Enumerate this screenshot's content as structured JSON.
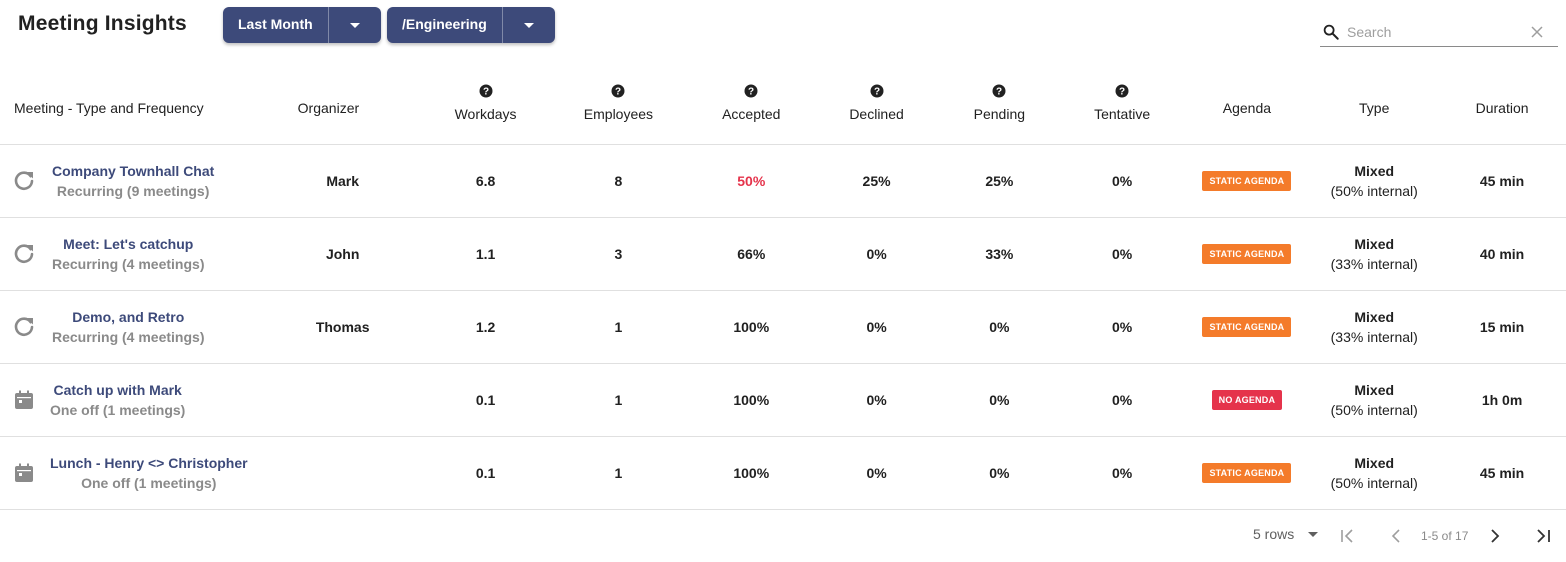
{
  "header": {
    "title": "Meeting Insights",
    "filters": [
      {
        "label": "Last Month",
        "icon": "chevron-down-icon"
      },
      {
        "label": "/Engineering",
        "icon": "chevron-down-icon"
      }
    ],
    "search": {
      "placeholder": "Search",
      "value": "",
      "icon": "search-icon",
      "clear_icon": "close-icon"
    }
  },
  "colors": {
    "accent": "#3d4a7a",
    "static_agenda": "#f47b2a",
    "no_agenda": "#e5334b",
    "red_value": "#e5334b",
    "muted": "#8a8a8a",
    "icon_gray": "#8a8a8a"
  },
  "table": {
    "columns": [
      {
        "label": "Meeting - Type and Frequency",
        "help": false
      },
      {
        "label": "Organizer",
        "help": false
      },
      {
        "label": "Workdays",
        "help": true
      },
      {
        "label": "Employees",
        "help": true
      },
      {
        "label": "Accepted",
        "help": true
      },
      {
        "label": "Declined",
        "help": true
      },
      {
        "label": "Pending",
        "help": true
      },
      {
        "label": "Tentative",
        "help": true
      },
      {
        "label": "Agenda",
        "help": false
      },
      {
        "label": "Type",
        "help": false
      },
      {
        "label": "Duration",
        "help": false
      }
    ],
    "rows": [
      {
        "icon": "recurring-icon",
        "name": "Company Townhall Chat",
        "frequency": "Recurring (9 meetings)",
        "organizer": "Mark",
        "workdays": "6.8",
        "employees": "8",
        "accepted": "50%",
        "accepted_alert": true,
        "declined": "25%",
        "pending": "25%",
        "tentative": "0%",
        "agenda": "STATIC AGENDA",
        "agenda_kind": "static",
        "type": "Mixed",
        "type_detail": "(50% internal)",
        "duration": "45 min"
      },
      {
        "icon": "recurring-icon",
        "name": "Meet: Let's catchup",
        "frequency": "Recurring (4 meetings)",
        "organizer": "John",
        "workdays": "1.1",
        "employees": "3",
        "accepted": "66%",
        "accepted_alert": false,
        "declined": "0%",
        "pending": "33%",
        "tentative": "0%",
        "agenda": "STATIC AGENDA",
        "agenda_kind": "static",
        "type": "Mixed",
        "type_detail": "(33% internal)",
        "duration": "40 min"
      },
      {
        "icon": "recurring-icon",
        "name": "Demo, and Retro",
        "frequency": "Recurring (4 meetings)",
        "organizer": "Thomas",
        "workdays": "1.2",
        "employees": "1",
        "accepted": "100%",
        "accepted_alert": false,
        "declined": "0%",
        "pending": "0%",
        "tentative": "0%",
        "agenda": "STATIC AGENDA",
        "agenda_kind": "static",
        "type": "Mixed",
        "type_detail": "(33% internal)",
        "duration": "15 min"
      },
      {
        "icon": "calendar-icon",
        "name": "Catch up with Mark",
        "frequency": "One off (1 meetings)",
        "organizer": "",
        "workdays": "0.1",
        "employees": "1",
        "accepted": "100%",
        "accepted_alert": false,
        "declined": "0%",
        "pending": "0%",
        "tentative": "0%",
        "agenda": "NO AGENDA",
        "agenda_kind": "none",
        "type": "Mixed",
        "type_detail": "(50% internal)",
        "duration": "1h 0m"
      },
      {
        "icon": "calendar-icon",
        "name": "Lunch - Henry <> Christopher",
        "frequency": "One off (1 meetings)",
        "organizer": "",
        "workdays": "0.1",
        "employees": "1",
        "accepted": "100%",
        "accepted_alert": false,
        "declined": "0%",
        "pending": "0%",
        "tentative": "0%",
        "agenda": "STATIC AGENDA",
        "agenda_kind": "static",
        "type": "Mixed",
        "type_detail": "(50% internal)",
        "duration": "45 min"
      }
    ]
  },
  "pagination": {
    "rows_per_page": "5 rows",
    "range": "1-5 of 17",
    "icons": [
      "first-page-icon",
      "prev-page-icon",
      "next-page-icon",
      "last-page-icon"
    ]
  }
}
